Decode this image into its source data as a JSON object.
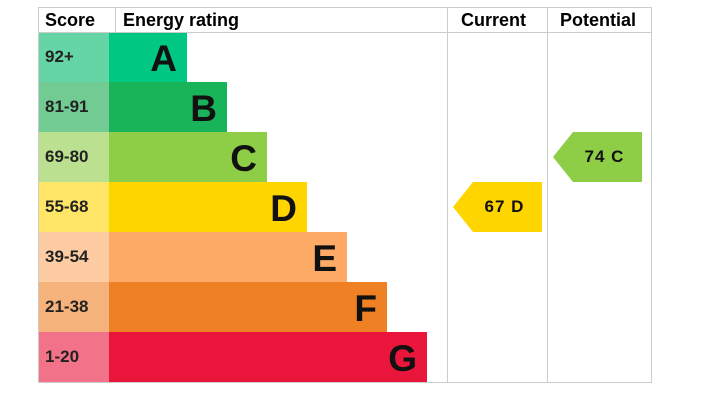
{
  "chart_data": {
    "type": "table",
    "headers": {
      "score": "Score",
      "rating": "Energy rating",
      "current": "Current",
      "potential": "Potential"
    },
    "bands": [
      {
        "range": "92+",
        "letter": "A",
        "color": "#00c781",
        "score_color": "#66d5a6"
      },
      {
        "range": "81-91",
        "letter": "B",
        "color": "#19b459",
        "score_color": "#71cb93"
      },
      {
        "range": "69-80",
        "letter": "C",
        "color": "#8dce46",
        "score_color": "#bbe190"
      },
      {
        "range": "55-68",
        "letter": "D",
        "color": "#ffd500",
        "score_color": "#ffe666"
      },
      {
        "range": "39-54",
        "letter": "E",
        "color": "#fcaa65",
        "score_color": "#fdcca3"
      },
      {
        "range": "21-38",
        "letter": "F",
        "color": "#ef8023",
        "score_color": "#f5b37b"
      },
      {
        "range": "1-20",
        "letter": "G",
        "color": "#e9153b",
        "score_color": "#f27389"
      }
    ],
    "current": {
      "value": 67,
      "letter": "D",
      "label": "67  D",
      "color": "#ffd500"
    },
    "potential": {
      "value": 74,
      "letter": "C",
      "label": "74  C",
      "color": "#8dce46"
    }
  }
}
